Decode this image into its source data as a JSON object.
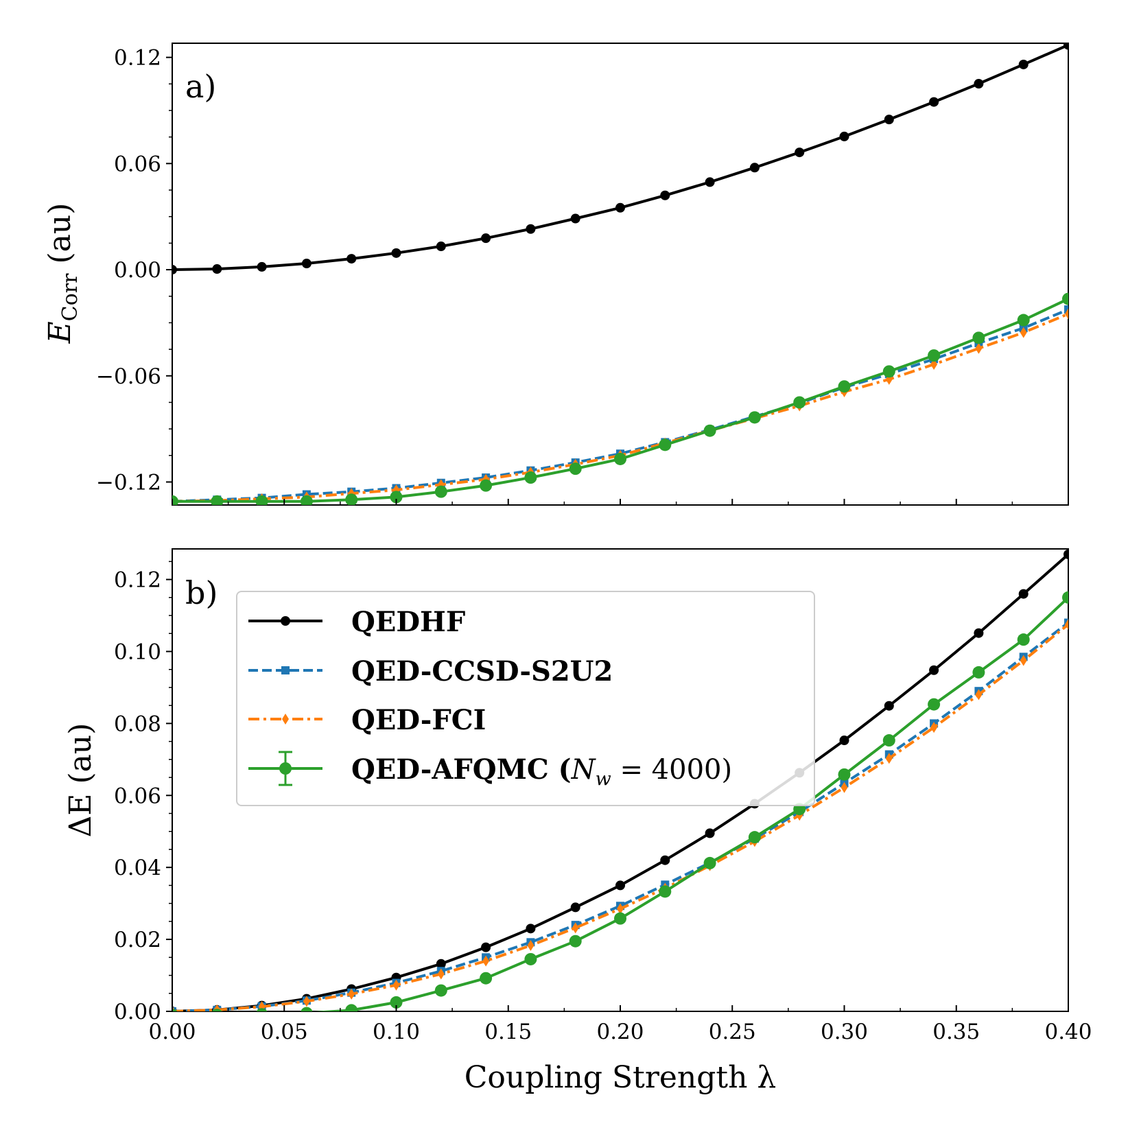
{
  "chart_data": [
    {
      "type": "line",
      "panel_label": "a)",
      "ylabel_main": "E",
      "ylabel_sub": "Corr",
      "ylabel_unit": "(au)",
      "xlabel": "",
      "xlim": [
        0,
        0.4
      ],
      "ylim": [
        -0.133,
        0.128
      ],
      "xticks": [
        0,
        0.05,
        0.1,
        0.15,
        0.2,
        0.25,
        0.3,
        0.35,
        0.4
      ],
      "xtick_labels": [
        "",
        "",
        "",
        "",
        "",
        "",
        "",
        "",
        ""
      ],
      "yticks": [
        -0.12,
        -0.06,
        0.0,
        0.06,
        0.12
      ],
      "ytick_labels": [
        "−0.12",
        "−0.06",
        "0.00",
        "0.06",
        "0.12"
      ],
      "x": [
        0,
        0.02,
        0.04,
        0.06,
        0.08,
        0.1,
        0.12,
        0.14,
        0.16,
        0.18,
        0.2,
        0.22,
        0.24,
        0.26,
        0.28,
        0.3,
        0.32,
        0.34,
        0.36,
        0.38,
        0.4
      ],
      "series": [
        {
          "name": "QEDHF",
          "color": "#000000",
          "marker": "circle",
          "dash": "solid",
          "values": [
            0.0,
            0.0004,
            0.0016,
            0.0035,
            0.0062,
            0.0094,
            0.0132,
            0.0178,
            0.023,
            0.0289,
            0.035,
            0.042,
            0.0495,
            0.0577,
            0.0663,
            0.0753,
            0.0849,
            0.0948,
            0.1051,
            0.116,
            0.127
          ]
        },
        {
          "name": "QED-CCSD-S2U2",
          "color": "#1f77b4",
          "marker": "square",
          "dash": "dashed",
          "values": [
            -0.131,
            -0.13,
            -0.129,
            -0.127,
            -0.1255,
            -0.1235,
            -0.1205,
            -0.1175,
            -0.1135,
            -0.109,
            -0.104,
            -0.0975,
            -0.0905,
            -0.083,
            -0.0755,
            -0.0665,
            -0.059,
            -0.0505,
            -0.0415,
            -0.033,
            -0.0225
          ]
        },
        {
          "name": "QED-FCI",
          "color": "#ff7f0e",
          "marker": "thin_diamond",
          "dash": "dashdot",
          "values": [
            -0.131,
            -0.1305,
            -0.1295,
            -0.1285,
            -0.1265,
            -0.1245,
            -0.1215,
            -0.1185,
            -0.1145,
            -0.11,
            -0.105,
            -0.098,
            -0.091,
            -0.084,
            -0.077,
            -0.069,
            -0.062,
            -0.0535,
            -0.0445,
            -0.0355,
            -0.025
          ]
        },
        {
          "name": "QED-AFQMC (N_w = 4000)",
          "color": "#2ca02c",
          "marker": "circle",
          "dash": "solid",
          "values": [
            -0.131,
            -0.131,
            -0.131,
            -0.131,
            -0.13,
            -0.1285,
            -0.1255,
            -0.122,
            -0.1175,
            -0.1125,
            -0.107,
            -0.099,
            -0.091,
            -0.0835,
            -0.075,
            -0.066,
            -0.0575,
            -0.0485,
            -0.0385,
            -0.0285,
            -0.0165
          ]
        }
      ]
    },
    {
      "type": "line",
      "panel_label": "b)",
      "ylabel": "ΔE (au)",
      "xlabel": "Coupling Strength λ",
      "xlim": [
        0,
        0.4
      ],
      "ylim": [
        0,
        0.1285
      ],
      "xticks": [
        0,
        0.05,
        0.1,
        0.15,
        0.2,
        0.25,
        0.3,
        0.35,
        0.4
      ],
      "xtick_labels": [
        "0.00",
        "0.05",
        "0.10",
        "0.15",
        "0.20",
        "0.25",
        "0.30",
        "0.35",
        "0.40"
      ],
      "yticks": [
        0,
        0.02,
        0.04,
        0.06,
        0.08,
        0.1,
        0.12
      ],
      "ytick_labels": [
        "0.00",
        "0.02",
        "0.04",
        "0.06",
        "0.08",
        "0.10",
        "0.12"
      ],
      "x": [
        0,
        0.02,
        0.04,
        0.06,
        0.08,
        0.1,
        0.12,
        0.14,
        0.16,
        0.18,
        0.2,
        0.22,
        0.24,
        0.26,
        0.28,
        0.3,
        0.32,
        0.34,
        0.36,
        0.38,
        0.4
      ],
      "series": [
        {
          "name": "QEDHF",
          "color": "#000000",
          "marker": "circle",
          "dash": "solid",
          "values": [
            0.0,
            0.0004,
            0.0016,
            0.0035,
            0.0062,
            0.0094,
            0.0132,
            0.0178,
            0.023,
            0.0289,
            0.035,
            0.042,
            0.0495,
            0.0577,
            0.0663,
            0.0753,
            0.0849,
            0.0948,
            0.1051,
            0.116,
            0.127
          ]
        },
        {
          "name": "QED-CCSD-S2U2",
          "color": "#1f77b4",
          "marker": "square",
          "dash": "dashed",
          "values": [
            0.0,
            0.0004,
            0.0014,
            0.003,
            0.0052,
            0.0079,
            0.0112,
            0.015,
            0.0192,
            0.024,
            0.0293,
            0.0352,
            0.0413,
            0.048,
            0.0554,
            0.0634,
            0.0714,
            0.08,
            0.089,
            0.0985,
            0.108
          ]
        },
        {
          "name": "QED-FCI",
          "color": "#ff7f0e",
          "marker": "thin_diamond",
          "dash": "dashdot",
          "values": [
            0.0,
            0.0004,
            0.0013,
            0.0028,
            0.0048,
            0.0073,
            0.0104,
            0.014,
            0.0183,
            0.0232,
            0.0285,
            0.0342,
            0.0405,
            0.0472,
            0.0545,
            0.0622,
            0.0703,
            0.0789,
            0.088,
            0.0975,
            0.1075
          ]
        },
        {
          "name": "QED-AFQMC (N_w = 4000)",
          "color": "#2ca02c",
          "marker": "circle",
          "dash": "solid",
          "values": [
            -0.001,
            -0.001,
            -0.0008,
            -0.0005,
            0.0003,
            0.0025,
            0.0058,
            0.0092,
            0.0145,
            0.0195,
            0.0258,
            0.0333,
            0.0412,
            0.0484,
            0.0562,
            0.0658,
            0.0753,
            0.0853,
            0.0942,
            0.1033,
            0.115
          ],
          "errors": [
            0.0005,
            0.0005,
            0.0005,
            0.0005,
            0.0005,
            0.0006,
            0.0006,
            0.0006,
            0.0007,
            0.0007,
            0.0007,
            0.0007,
            0.0008,
            0.0008,
            0.0008,
            0.0009,
            0.0009,
            0.0009,
            0.001,
            0.001,
            0.001
          ]
        }
      ],
      "legend": {
        "position": "upper-left",
        "entries": [
          {
            "label": "QEDHF"
          },
          {
            "label": "QED-CCSD-S2U2"
          },
          {
            "label": "QED-FCI"
          },
          {
            "label": "QED-AFQMC (",
            "math_var": "N",
            "math_sub": "w",
            "math_rest": " = 4000)"
          }
        ]
      }
    }
  ]
}
